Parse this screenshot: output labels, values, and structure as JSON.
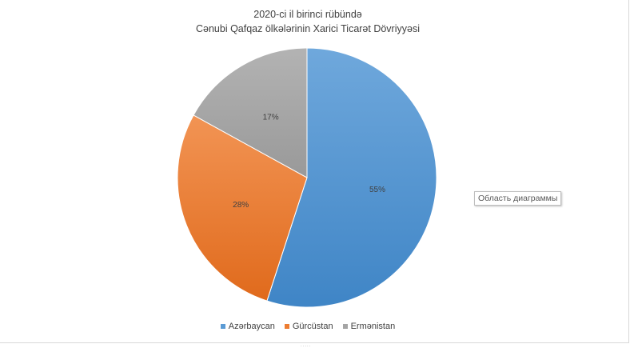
{
  "chart_data": {
    "type": "pie",
    "title_line1": "2020-ci  il birinci rübündə",
    "title_line2": "Cənubi Qafqaz ölkələrinin Xarici Ticarət Dövriyyəsi",
    "categories": [
      "Azərbaycan",
      "Gürcüstan",
      "Ermənistan"
    ],
    "values": [
      55,
      28,
      17
    ],
    "labels": [
      "55%",
      "28%",
      "17%"
    ],
    "colors": [
      "#5b9bd5",
      "#ed7d31",
      "#a5a5a5"
    ],
    "legend_position": "bottom"
  },
  "tooltip": {
    "text": "Область диаграммы"
  },
  "resize_handle": "....."
}
